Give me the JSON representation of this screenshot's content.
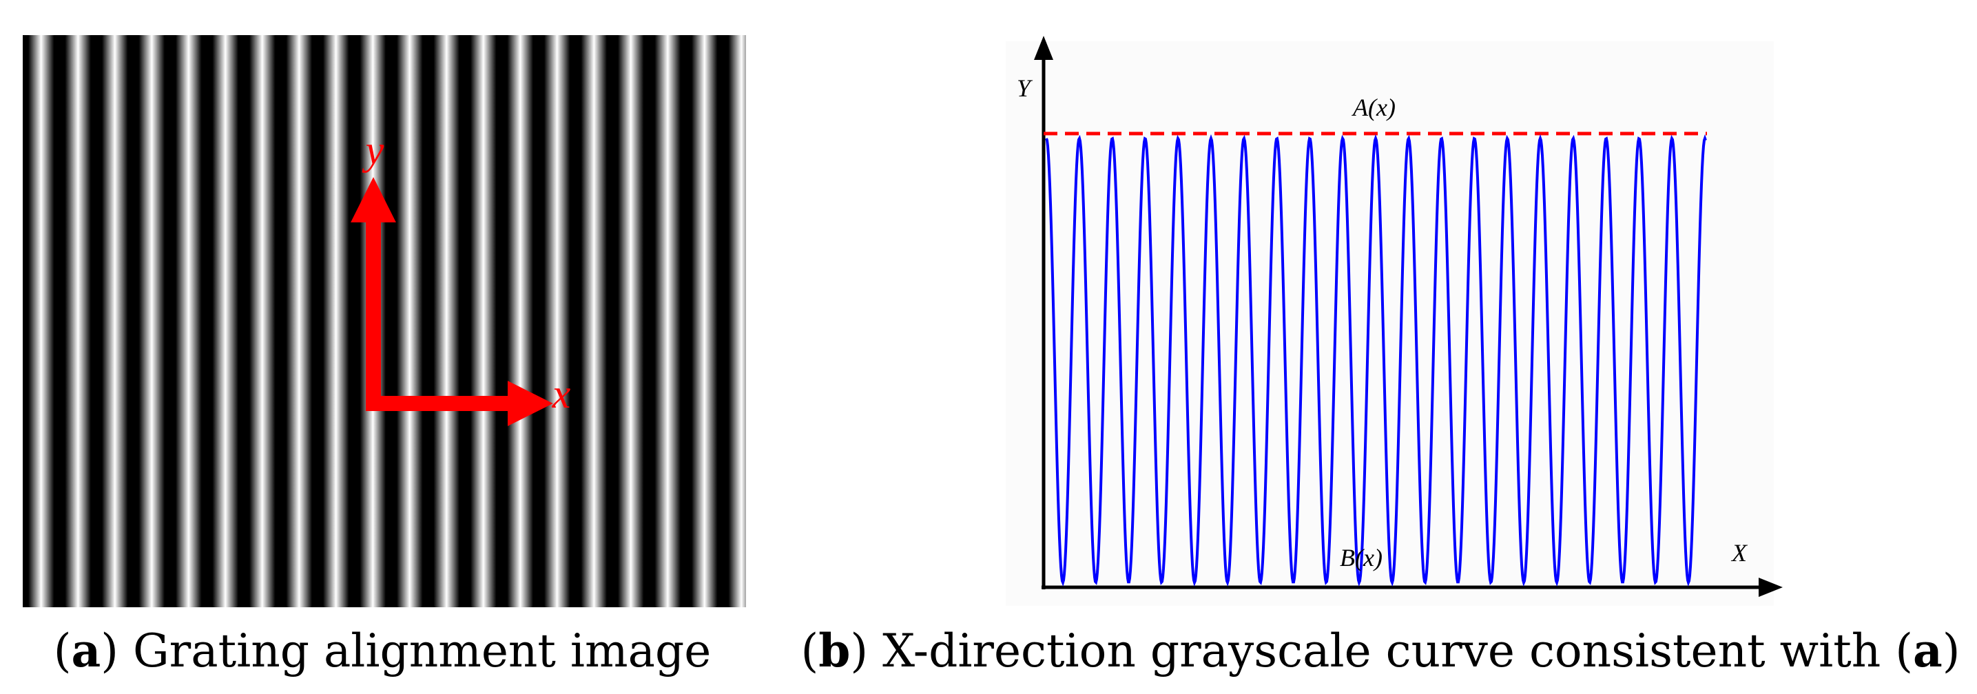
{
  "panel_a": {
    "axis_labels": {
      "y": "y",
      "x": "x"
    },
    "caption": [
      {
        "text": "(",
        "bold": false
      },
      {
        "text": "a",
        "bold": true
      },
      {
        "text": ") Grating alignment image",
        "bold": false
      }
    ]
  },
  "panel_b": {
    "axis_labels": {
      "y": "Y",
      "x": "X"
    },
    "upper_label": "A(x)",
    "lower_label": "B(x)",
    "caption": [
      {
        "text": "(",
        "bold": false
      },
      {
        "text": "b",
        "bold": true
      },
      {
        "text": ") X-direction grayscale curve consistent with (",
        "bold": false
      },
      {
        "text": "a",
        "bold": true
      },
      {
        "text": ")",
        "bold": false
      }
    ]
  }
}
